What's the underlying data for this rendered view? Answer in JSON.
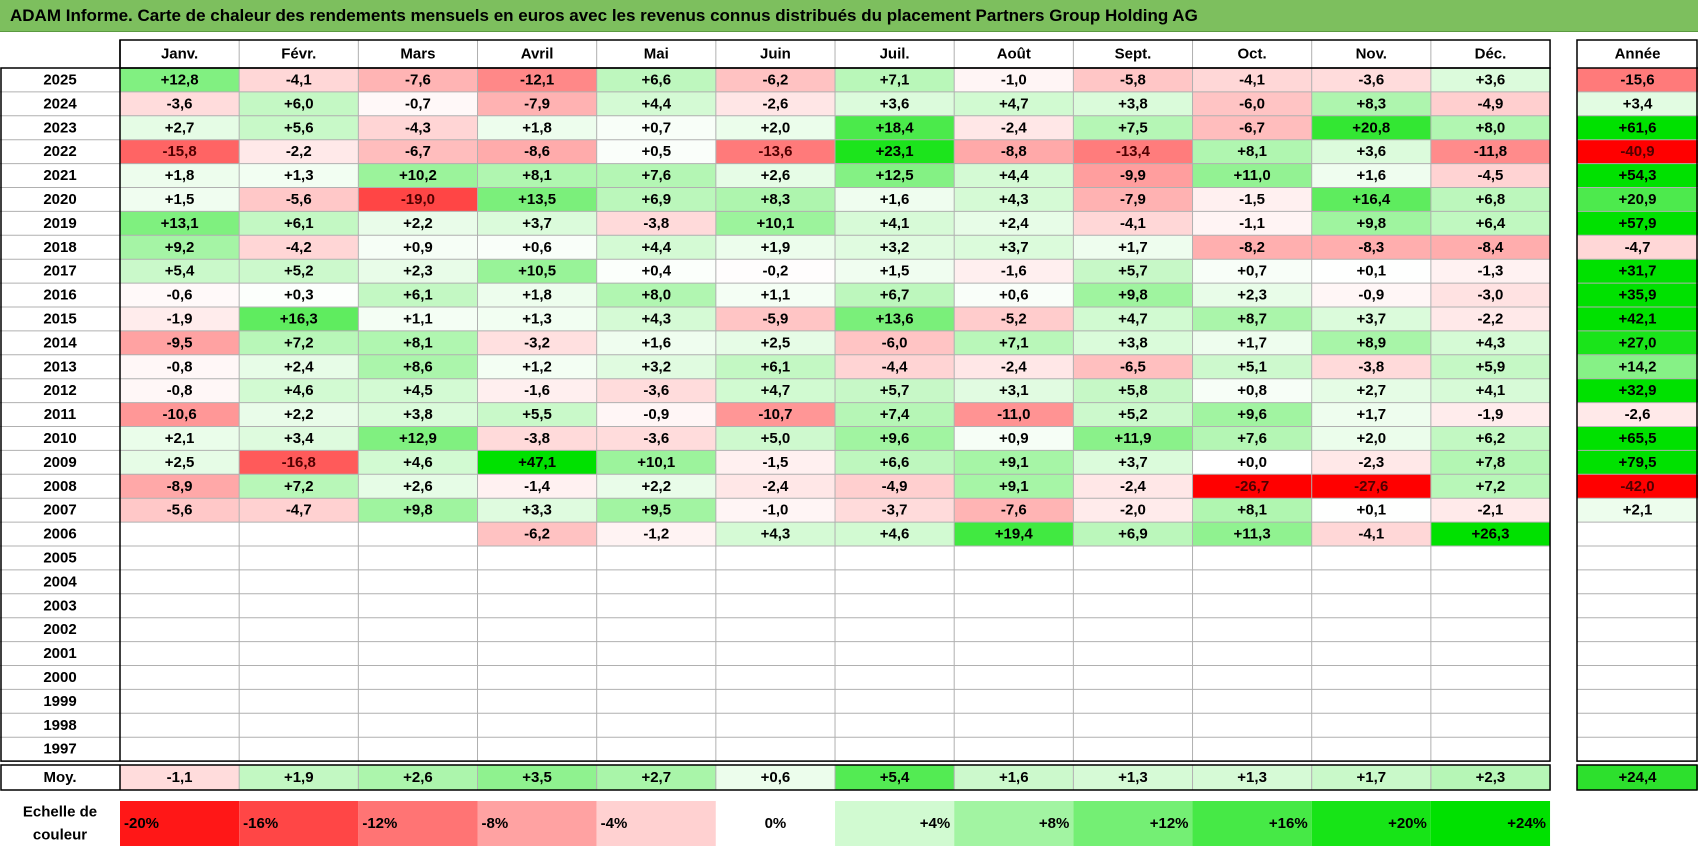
{
  "title": "ADAM Informe. Carte de chaleur des rendements mensuels en euros avec les revenus connus distribués du placement Partners Group Holding AG",
  "chart_data": {
    "type": "heatmap",
    "months": [
      "Janv.",
      "Févr.",
      "Mars",
      "Avril",
      "Mai",
      "Juin",
      "Juil.",
      "Août",
      "Sept.",
      "Oct.",
      "Nov.",
      "Déc."
    ],
    "year_header": "Année",
    "years": [
      "2025",
      "2024",
      "2023",
      "2022",
      "2021",
      "2020",
      "2019",
      "2018",
      "2017",
      "2016",
      "2015",
      "2014",
      "2013",
      "2012",
      "2011",
      "2010",
      "2009",
      "2008",
      "2007",
      "2006",
      "2005",
      "2004",
      "2003",
      "2002",
      "2001",
      "2000",
      "1999",
      "1998",
      "1997"
    ],
    "values": [
      [
        "+12,8",
        "-4,1",
        "-7,6",
        "-12,1",
        "+6,6",
        "-6,2",
        "+7,1",
        "-1,0",
        "-5,8",
        "-4,1",
        "-3,6",
        "+3,6"
      ],
      [
        "-3,6",
        "+6,0",
        "-0,7",
        "-7,9",
        "+4,4",
        "-2,6",
        "+3,6",
        "+4,7",
        "+3,8",
        "-6,0",
        "+8,3",
        "-4,9"
      ],
      [
        "+2,7",
        "+5,6",
        "-4,3",
        "+1,8",
        "+0,7",
        "+2,0",
        "+18,4",
        "-2,4",
        "+7,5",
        "-6,7",
        "+20,8",
        "+8,0"
      ],
      [
        "-15,8",
        "-2,2",
        "-6,7",
        "-8,6",
        "+0,5",
        "-13,6",
        "+23,1",
        "-8,8",
        "-13,4",
        "+8,1",
        "+3,6",
        "-11,8"
      ],
      [
        "+1,8",
        "+1,3",
        "+10,2",
        "+8,1",
        "+7,6",
        "+2,6",
        "+12,5",
        "+4,4",
        "-9,9",
        "+11,0",
        "+1,6",
        "-4,5"
      ],
      [
        "+1,5",
        "-5,6",
        "-19,0",
        "+13,5",
        "+6,9",
        "+8,3",
        "+1,6",
        "+4,3",
        "-7,9",
        "-1,5",
        "+16,4",
        "+6,8"
      ],
      [
        "+13,1",
        "+6,1",
        "+2,2",
        "+3,7",
        "-3,8",
        "+10,1",
        "+4,1",
        "+2,4",
        "-4,1",
        "-1,1",
        "+9,8",
        "+6,4"
      ],
      [
        "+9,2",
        "-4,2",
        "+0,9",
        "+0,6",
        "+4,4",
        "+1,9",
        "+3,2",
        "+3,7",
        "+1,7",
        "-8,2",
        "-8,3",
        "-8,4"
      ],
      [
        "+5,4",
        "+5,2",
        "+2,3",
        "+10,5",
        "+0,4",
        "-0,2",
        "+1,5",
        "-1,6",
        "+5,7",
        "+0,7",
        "+0,1",
        "-1,3"
      ],
      [
        "-0,6",
        "+0,3",
        "+6,1",
        "+1,8",
        "+8,0",
        "+1,1",
        "+6,7",
        "+0,6",
        "+9,8",
        "+2,3",
        "-0,9",
        "-3,0"
      ],
      [
        "-1,9",
        "+16,3",
        "+1,1",
        "+1,3",
        "+4,3",
        "-5,9",
        "+13,6",
        "-5,2",
        "+4,7",
        "+8,7",
        "+3,7",
        "-2,2"
      ],
      [
        "-9,5",
        "+7,2",
        "+8,1",
        "-3,2",
        "+1,6",
        "+2,5",
        "-6,0",
        "+7,1",
        "+3,8",
        "+1,7",
        "+8,9",
        "+4,3"
      ],
      [
        "-0,8",
        "+2,4",
        "+8,6",
        "+1,2",
        "+3,2",
        "+6,1",
        "-4,4",
        "-2,4",
        "-6,5",
        "+5,1",
        "-3,8",
        "+5,9"
      ],
      [
        "-0,8",
        "+4,6",
        "+4,5",
        "-1,6",
        "-3,6",
        "+4,7",
        "+5,7",
        "+3,1",
        "+5,8",
        "+0,8",
        "+2,7",
        "+4,1"
      ],
      [
        "-10,6",
        "+2,2",
        "+3,8",
        "+5,5",
        "-0,9",
        "-10,7",
        "+7,4",
        "-11,0",
        "+5,2",
        "+9,6",
        "+1,7",
        "-1,9"
      ],
      [
        "+2,1",
        "+3,4",
        "+12,9",
        "-3,8",
        "-3,6",
        "+5,0",
        "+9,6",
        "+0,9",
        "+11,9",
        "+7,6",
        "+2,0",
        "+6,2"
      ],
      [
        "+2,5",
        "-16,8",
        "+4,6",
        "+47,1",
        "+10,1",
        "-1,5",
        "+6,6",
        "+9,1",
        "+3,7",
        "+0,0",
        "-2,3",
        "+7,8"
      ],
      [
        "-8,9",
        "+7,2",
        "+2,6",
        "-1,4",
        "+2,2",
        "-2,4",
        "-4,9",
        "+9,1",
        "-2,4",
        "-26,7",
        "-27,6",
        "+7,2"
      ],
      [
        "-5,6",
        "-4,7",
        "+9,8",
        "+3,3",
        "+9,5",
        "-1,0",
        "-3,7",
        "-7,6",
        "-2,0",
        "+8,1",
        "+0,1",
        "-2,1"
      ],
      [
        "",
        "",
        "",
        "-6,2",
        "-1,2",
        "+4,3",
        "+4,6",
        "+19,4",
        "+6,9",
        "+11,3",
        "-4,1",
        "+26,3"
      ],
      [
        "",
        "",
        "",
        "",
        "",
        "",
        "",
        "",
        "",
        "",
        "",
        ""
      ],
      [
        "",
        "",
        "",
        "",
        "",
        "",
        "",
        "",
        "",
        "",
        "",
        ""
      ],
      [
        "",
        "",
        "",
        "",
        "",
        "",
        "",
        "",
        "",
        "",
        "",
        ""
      ],
      [
        "",
        "",
        "",
        "",
        "",
        "",
        "",
        "",
        "",
        "",
        "",
        ""
      ],
      [
        "",
        "",
        "",
        "",
        "",
        "",
        "",
        "",
        "",
        "",
        "",
        ""
      ],
      [
        "",
        "",
        "",
        "",
        "",
        "",
        "",
        "",
        "",
        "",
        "",
        ""
      ],
      [
        "",
        "",
        "",
        "",
        "",
        "",
        "",
        "",
        "",
        "",
        "",
        ""
      ],
      [
        "",
        "",
        "",
        "",
        "",
        "",
        "",
        "",
        "",
        "",
        "",
        ""
      ],
      [
        "",
        "",
        "",
        "",
        "",
        "",
        "",
        "",
        "",
        "",
        "",
        ""
      ]
    ],
    "annual": [
      "-15,6",
      "+3,4",
      "+61,6",
      "-40,9",
      "+54,3",
      "+20,9",
      "+57,9",
      "-4,7",
      "+31,7",
      "+35,9",
      "+42,1",
      "+27,0",
      "+14,2",
      "+32,9",
      "-2,6",
      "+65,5",
      "+79,5",
      "-42,0",
      "+2,1",
      "",
      "",
      "",
      "",
      "",
      "",
      "",
      "",
      "",
      ""
    ],
    "average_label": "Moy.",
    "averages": [
      "-1,1",
      "+1,9",
      "+2,6",
      "+3,5",
      "+2,7",
      "+0,6",
      "+5,4",
      "+1,6",
      "+1,3",
      "+1,3",
      "+1,7",
      "+2,3"
    ],
    "average_annual": "+24,4",
    "scale_label": [
      "Echelle de",
      "couleur"
    ],
    "scale": [
      {
        "label": "-20%",
        "value": -20
      },
      {
        "label": "-16%",
        "value": -16
      },
      {
        "label": "-12%",
        "value": -12
      },
      {
        "label": "-8%",
        "value": -8
      },
      {
        "label": "-4%",
        "value": -4
      },
      {
        "label": "0%",
        "value": 0
      },
      {
        "label": "+4%",
        "value": 4
      },
      {
        "label": "+8%",
        "value": 8
      },
      {
        "label": "+12%",
        "value": 12
      },
      {
        "label": "+16%",
        "value": 16
      },
      {
        "label": "+20%",
        "value": 20
      },
      {
        "label": "+24%",
        "value": 24
      }
    ],
    "colors": {
      "negative_max": "#ff0000",
      "neutral": "#ffffff",
      "positive_max": "#00e000",
      "title_bar": "#7dbf5e",
      "grid": "#b0b0b0",
      "frame": "#000000"
    }
  }
}
